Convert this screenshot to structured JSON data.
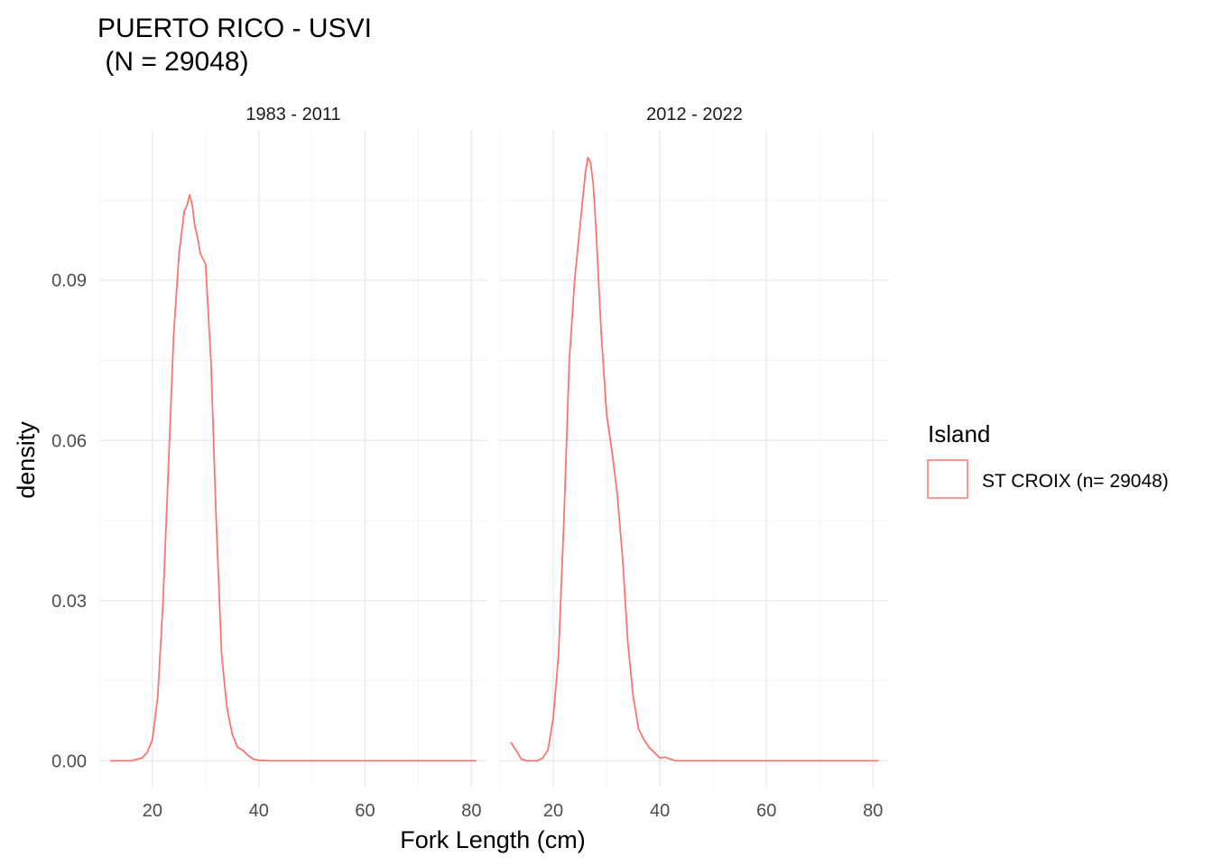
{
  "colors": {
    "series": "#f8766d",
    "grid_major": "#ebebeb",
    "grid_minor": "#f4f4f4",
    "tick_text": "#4d4d4d"
  },
  "chart_data": {
    "type": "line",
    "title": [
      "PUERTO RICO - USVI",
      " (N = 29048)"
    ],
    "xlabel": "Fork Length (cm)",
    "ylabel": "density",
    "xlim": [
      10,
      83
    ],
    "ylim": [
      -0.005,
      0.118
    ],
    "x_ticks": [
      20,
      40,
      60,
      80
    ],
    "y_ticks": [
      0.0,
      0.03,
      0.06,
      0.09
    ],
    "y_tick_labels": [
      "0.00",
      "0.03",
      "0.06",
      "0.09"
    ],
    "grid": true,
    "legend": {
      "title": "Island",
      "position": "right",
      "entries": [
        "ST CROIX (n= 29048)"
      ]
    },
    "panels": [
      {
        "label": "1983 - 2011",
        "series": [
          {
            "name": "ST CROIX (n= 29048)",
            "x": [
              12,
              16,
              18,
              19,
              20,
              21,
              22,
              23,
              24,
              25,
              26,
              26.5,
              27,
              27.5,
              28,
              28.5,
              29,
              29.5,
              30,
              31,
              32,
              33,
              34,
              35,
              36,
              37,
              38,
              39,
              40,
              42,
              50,
              60,
              70,
              81
            ],
            "y": [
              0,
              0,
              0.0005,
              0.0015,
              0.004,
              0.012,
              0.03,
              0.055,
              0.08,
              0.095,
              0.103,
              0.104,
              0.106,
              0.104,
              0.1,
              0.098,
              0.095,
              0.094,
              0.093,
              0.075,
              0.045,
              0.02,
              0.01,
              0.005,
              0.0025,
              0.002,
              0.001,
              0.0003,
              0.0001,
              0,
              0,
              0,
              0,
              0
            ]
          }
        ]
      },
      {
        "label": "2012 - 2022",
        "series": [
          {
            "name": "ST CROIX (n= 29048)",
            "x": [
              12,
              13,
              14,
              15,
              16,
              17,
              18,
              19,
              20,
              21,
              22,
              23,
              24,
              25,
              25.5,
              26,
              26.5,
              27,
              27.5,
              28,
              28.5,
              29,
              30,
              31,
              32,
              33,
              34,
              35,
              36,
              37,
              38,
              39,
              40,
              41,
              42,
              43,
              50,
              60,
              70,
              81
            ],
            "y": [
              0.0035,
              0.002,
              0.0003,
              0,
              0,
              0,
              0.0005,
              0.002,
              0.008,
              0.02,
              0.045,
              0.075,
              0.09,
              0.1,
              0.105,
              0.11,
              0.113,
              0.112,
              0.108,
              0.1,
              0.09,
              0.08,
              0.065,
              0.058,
              0.05,
              0.038,
              0.022,
              0.012,
              0.006,
              0.004,
              0.0025,
              0.0015,
              0.0005,
              0.0007,
              0.0003,
              0,
              0,
              0,
              0,
              0
            ]
          }
        ]
      }
    ]
  }
}
